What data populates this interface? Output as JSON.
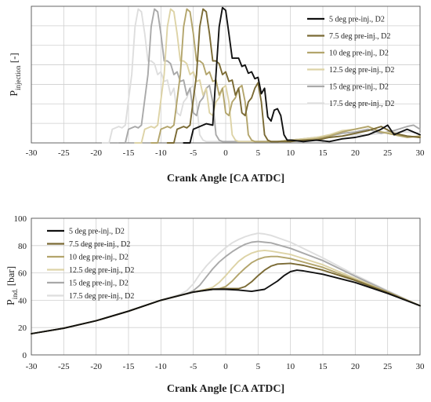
{
  "chart_data": [
    {
      "type": "line",
      "xlabel": "Crank Angle [CA ATDC]",
      "ylabel_main": "P",
      "ylabel_sub": "injection",
      "ylabel_unit": "[-]",
      "xlim": [
        -30,
        30
      ],
      "ylim": [
        0,
        1
      ],
      "xticks": [
        "-30",
        "-25",
        "-20",
        "-15",
        "-10",
        "-5",
        "0",
        "5",
        "10",
        "15",
        "20",
        "25",
        "30"
      ],
      "show_ytick_labels": false,
      "grid": true,
      "legend_position": "top-right",
      "series": [
        {
          "name": "5 deg pre-inj., D2",
          "color": "#111111",
          "x": [
            -6.5,
            -5.5,
            -5,
            -4,
            -3,
            -2,
            -1.5,
            -1,
            -0.5,
            0,
            0.5,
            1,
            1.5,
            2,
            2.5,
            3,
            3.5,
            4,
            4.5,
            5,
            5.5,
            6,
            6.5,
            7,
            7.5,
            8,
            8.5,
            9,
            9.5,
            10,
            12,
            14,
            16,
            18,
            20,
            22,
            24,
            25,
            26,
            28,
            30
          ],
          "y": [
            0,
            0,
            0.1,
            0.12,
            0.14,
            0.13,
            0.5,
            0.85,
            0.99,
            0.97,
            0.8,
            0.62,
            0.62,
            0.62,
            0.56,
            0.57,
            0.51,
            0.52,
            0.47,
            0.48,
            0.36,
            0.4,
            0.19,
            0.16,
            0.24,
            0.25,
            0.2,
            0.06,
            0.02,
            0.02,
            0.01,
            0.02,
            0.01,
            0.03,
            0.04,
            0.06,
            0.1,
            0.13,
            0.06,
            0.1,
            0.06
          ]
        },
        {
          "name": "7.5 deg pre-inj., D2",
          "color": "#7a6a34",
          "x": [
            -9,
            -8,
            -7.5,
            -6.5,
            -6,
            -5.5,
            -4.5,
            -4,
            -3.5,
            -3,
            -2.5,
            -2,
            -1.5,
            -1,
            -0.5,
            0,
            0.5,
            1,
            1.5,
            2,
            2.5,
            3,
            3.5,
            4,
            4.5,
            5,
            5.5,
            6,
            6.5,
            7,
            8,
            10,
            12,
            14,
            16,
            18,
            20,
            22,
            24,
            26,
            28,
            30
          ],
          "y": [
            0,
            0,
            0.1,
            0.12,
            0.11,
            0.13,
            0.5,
            0.85,
            0.98,
            0.96,
            0.8,
            0.6,
            0.6,
            0.58,
            0.5,
            0.52,
            0.45,
            0.46,
            0.35,
            0.4,
            0.22,
            0.2,
            0.3,
            0.33,
            0.4,
            0.44,
            0.3,
            0.06,
            0.02,
            0.01,
            0.01,
            0.01,
            0.02,
            0.02,
            0.04,
            0.05,
            0.07,
            0.09,
            0.12,
            0.07,
            0.05,
            0.04
          ]
        },
        {
          "name": "10 deg pre-inj., D2",
          "color": "#b3a56c",
          "x": [
            -11.5,
            -10.5,
            -10,
            -9,
            -8.5,
            -8,
            -7,
            -6.5,
            -6,
            -5.5,
            -5,
            -4.5,
            -4,
            -3.5,
            -3,
            -2.5,
            -2,
            -1.5,
            -1,
            -0.5,
            0,
            0.5,
            1,
            1.5,
            2,
            2.5,
            3,
            3.5,
            4,
            4.5,
            5,
            6,
            8,
            10,
            12,
            14,
            16,
            18,
            20,
            22,
            24,
            26,
            28,
            30
          ],
          "y": [
            0,
            0,
            0.1,
            0.12,
            0.11,
            0.13,
            0.5,
            0.85,
            0.98,
            0.96,
            0.8,
            0.6,
            0.6,
            0.58,
            0.5,
            0.52,
            0.45,
            0.46,
            0.35,
            0.4,
            0.22,
            0.2,
            0.3,
            0.33,
            0.4,
            0.42,
            0.3,
            0.06,
            0.02,
            0.01,
            0.01,
            0.01,
            0.01,
            0.02,
            0.02,
            0.03,
            0.05,
            0.08,
            0.1,
            0.12,
            0.08,
            0.06,
            0.04,
            0.05
          ]
        },
        {
          "name": "12.5 deg pre-inj., D2",
          "color": "#ddd3a6",
          "x": [
            -14,
            -13,
            -12.5,
            -11.5,
            -11,
            -10.5,
            -9.5,
            -9,
            -8.5,
            -8,
            -7.5,
            -7,
            -6.5,
            -6,
            -5.5,
            -5,
            -4.5,
            -4,
            -3.5,
            -3,
            -2.5,
            -2,
            -1.5,
            -1,
            -0.5,
            0,
            0.5,
            1,
            1.5,
            2,
            2.5,
            4,
            6,
            8,
            10,
            12,
            14,
            16,
            18,
            20,
            22,
            24,
            26,
            28,
            30
          ],
          "y": [
            0,
            0,
            0.1,
            0.12,
            0.11,
            0.13,
            0.5,
            0.85,
            0.98,
            0.96,
            0.8,
            0.6,
            0.6,
            0.58,
            0.5,
            0.52,
            0.45,
            0.46,
            0.35,
            0.4,
            0.22,
            0.2,
            0.3,
            0.33,
            0.4,
            0.42,
            0.3,
            0.06,
            0.02,
            0.01,
            0.01,
            0.01,
            0.01,
            0.01,
            0.02,
            0.03,
            0.04,
            0.06,
            0.09,
            0.1,
            0.12,
            0.08,
            0.07,
            0.05,
            0.04
          ]
        },
        {
          "name": "15 deg pre-inj., D2",
          "color": "#a9a9a9",
          "x": [
            -16.5,
            -15.5,
            -15,
            -14,
            -13.5,
            -13,
            -12,
            -11.5,
            -11,
            -10.5,
            -10,
            -9.5,
            -9,
            -8.5,
            -8,
            -7.5,
            -7,
            -6.5,
            -6,
            -5.5,
            -5,
            -4.5,
            -4,
            -3.5,
            -3,
            -2.5,
            -2,
            -1.5,
            -1,
            -0.5,
            0,
            2,
            4,
            6,
            8,
            10,
            12,
            14,
            16,
            18,
            20,
            22,
            24,
            26,
            28,
            29,
            30
          ],
          "y": [
            0,
            0,
            0.1,
            0.12,
            0.11,
            0.13,
            0.5,
            0.85,
            0.98,
            0.96,
            0.8,
            0.6,
            0.6,
            0.58,
            0.5,
            0.52,
            0.45,
            0.46,
            0.35,
            0.4,
            0.22,
            0.2,
            0.3,
            0.33,
            0.4,
            0.42,
            0.3,
            0.06,
            0.02,
            0.01,
            0.01,
            0.01,
            0.01,
            0.01,
            0.01,
            0.02,
            0.03,
            0.04,
            0.05,
            0.07,
            0.08,
            0.1,
            0.07,
            0.09,
            0.12,
            0.13,
            0.1
          ]
        },
        {
          "name": "17.5 deg pre-inj., D2",
          "color": "#dedede",
          "x": [
            -19,
            -18,
            -17.5,
            -16.5,
            -16,
            -15.5,
            -14.5,
            -14,
            -13.5,
            -13,
            -12.5,
            -12,
            -11.5,
            -11,
            -10.5,
            -10,
            -9.5,
            -9,
            -8.5,
            -8,
            -7.5,
            -7,
            -6.5,
            -6,
            -5.5,
            -5,
            -4.5,
            -4,
            -3.5,
            -3,
            -2.5,
            0,
            2,
            4,
            6,
            8,
            10,
            12,
            14,
            16,
            18,
            20,
            22,
            24,
            26,
            28,
            30
          ],
          "y": [
            0,
            0,
            0.1,
            0.12,
            0.11,
            0.13,
            0.5,
            0.85,
            0.98,
            0.96,
            0.8,
            0.6,
            0.6,
            0.58,
            0.5,
            0.52,
            0.45,
            0.46,
            0.35,
            0.4,
            0.22,
            0.2,
            0.3,
            0.33,
            0.4,
            0.42,
            0.3,
            0.06,
            0.02,
            0.01,
            0.01,
            0.01,
            0.01,
            0.01,
            0.01,
            0.01,
            0.02,
            0.03,
            0.03,
            0.04,
            0.05,
            0.06,
            0.06,
            0.07,
            0.08,
            0.08,
            0.07
          ]
        }
      ]
    },
    {
      "type": "line",
      "xlabel": "Crank Angle [CA ATDC]",
      "ylabel_main": "P",
      "ylabel_sub": "ind.",
      "ylabel_unit": "[bar]",
      "xlim": [
        -30,
        30
      ],
      "ylim": [
        0,
        100
      ],
      "xticks": [
        "-30",
        "-25",
        "-20",
        "-15",
        "-10",
        "-5",
        "0",
        "5",
        "10",
        "15",
        "20",
        "25",
        "30"
      ],
      "yticks": [
        "0",
        "20",
        "40",
        "60",
        "80",
        "100"
      ],
      "grid": true,
      "legend_position": "top-left",
      "series": [
        {
          "name": "5 deg pre-inj., D2",
          "color": "#111111",
          "x": [
            -30,
            -25,
            -20,
            -15,
            -10,
            -5,
            -2,
            0,
            2,
            4,
            6,
            8,
            9,
            10,
            11,
            12,
            15,
            20,
            25,
            30
          ],
          "y": [
            15.5,
            19.5,
            25,
            32,
            40,
            46,
            48,
            48,
            47.5,
            46.5,
            48,
            54,
            58,
            61,
            62,
            61.5,
            59,
            53,
            45,
            36
          ]
        },
        {
          "name": "7.5 deg pre-inj., D2",
          "color": "#7a6a34",
          "x": [
            -30,
            -25,
            -20,
            -15,
            -10,
            -5,
            -2,
            0,
            2,
            3,
            4,
            5,
            6,
            7,
            8,
            10,
            12,
            15,
            20,
            25,
            30
          ],
          "y": [
            15.5,
            19.5,
            25,
            32,
            40,
            46,
            48,
            48.5,
            48.5,
            50,
            53.5,
            58,
            62,
            65,
            66.5,
            67,
            65.5,
            62,
            54.5,
            45.5,
            36
          ]
        },
        {
          "name": "10 deg pre-inj., D2",
          "color": "#b3a56c",
          "x": [
            -30,
            -25,
            -20,
            -15,
            -10,
            -5,
            -3,
            -1,
            0,
            1,
            2,
            3,
            4,
            5,
            6,
            7,
            8,
            10,
            15,
            20,
            25,
            30
          ],
          "y": [
            15.5,
            19.5,
            25,
            32,
            40,
            46,
            48,
            48.5,
            50,
            54,
            59,
            63.5,
            67.5,
            70,
            71.5,
            72,
            72,
            70.5,
            64,
            55,
            46,
            36
          ]
        },
        {
          "name": "12.5 deg pre-inj., D2",
          "color": "#ddd3a6",
          "x": [
            -30,
            -25,
            -20,
            -15,
            -10,
            -5,
            -3,
            -2,
            -1,
            0,
            1,
            2,
            3,
            4,
            5,
            6,
            7,
            10,
            15,
            20,
            25,
            30
          ],
          "y": [
            15.5,
            19.5,
            25,
            32,
            40,
            46,
            48,
            49.5,
            53,
            58,
            63.5,
            68.5,
            72,
            74.5,
            76,
            76.5,
            76,
            73.5,
            66,
            56,
            46,
            36
          ]
        },
        {
          "name": "15 deg pre-inj., D2",
          "color": "#a9a9a9",
          "x": [
            -30,
            -25,
            -20,
            -15,
            -10,
            -6,
            -5,
            -4,
            -3,
            -2,
            -1,
            0,
            1,
            2,
            3,
            4,
            5,
            6,
            7,
            10,
            15,
            20,
            25,
            30
          ],
          "y": [
            15.5,
            19.5,
            25,
            32,
            40,
            45,
            47,
            51,
            57,
            63,
            68,
            72,
            75.5,
            78.5,
            81,
            82.5,
            83,
            82.5,
            82,
            78,
            69,
            57.5,
            46.5,
            36
          ]
        },
        {
          "name": "17.5 deg pre-inj., D2",
          "color": "#dedede",
          "x": [
            -30,
            -25,
            -20,
            -15,
            -10,
            -7,
            -6,
            -5,
            -4,
            -3,
            -2,
            -1,
            0,
            1,
            2,
            3,
            4,
            5,
            6,
            7,
            10,
            15,
            20,
            25,
            30
          ],
          "y": [
            15.5,
            19.5,
            25,
            32,
            40,
            44.5,
            47,
            52,
            59,
            65,
            70,
            74.5,
            78.5,
            82,
            84.5,
            86.5,
            88,
            89,
            88.5,
            87.5,
            82.5,
            71,
            58.5,
            47,
            36
          ]
        }
      ]
    }
  ]
}
